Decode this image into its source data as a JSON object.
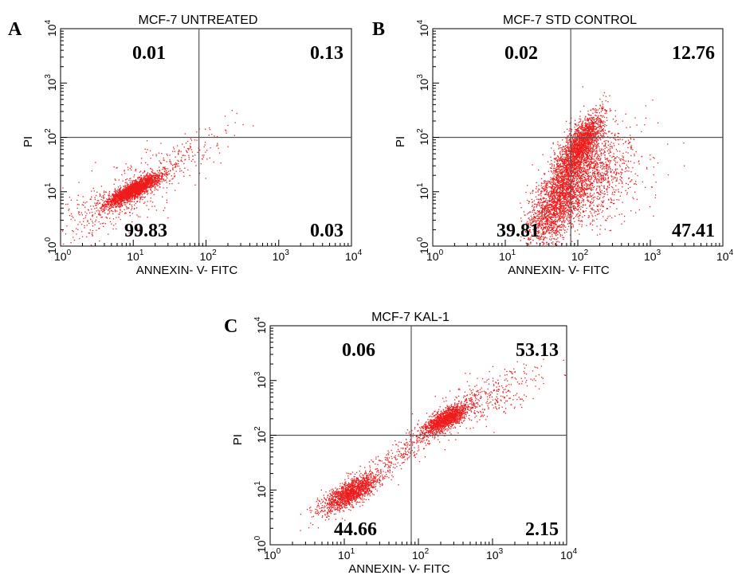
{
  "chart_data": [
    {
      "type": "scatter",
      "panel": "A",
      "title": "MCF-7 UNTREATED",
      "xlabel": "ANNEXIN- V- FITC",
      "ylabel": "PI",
      "x_scale": "log",
      "y_scale": "log",
      "xlim": [
        1,
        10000
      ],
      "ylim": [
        1,
        10000
      ],
      "x_ticks": [
        {
          "base": "10",
          "exp": "0"
        },
        {
          "base": "10",
          "exp": "1"
        },
        {
          "base": "10",
          "exp": "2"
        },
        {
          "base": "10",
          "exp": "3"
        },
        {
          "base": "10",
          "exp": "4"
        }
      ],
      "y_ticks": [
        {
          "base": "10",
          "exp": "0"
        },
        {
          "base": "10",
          "exp": "1"
        },
        {
          "base": "10",
          "exp": "2"
        },
        {
          "base": "10",
          "exp": "3"
        },
        {
          "base": "10",
          "exp": "4"
        }
      ],
      "gate": {
        "x": 80,
        "y": 100
      },
      "quadrants": {
        "upper_left": "0.01",
        "upper_right": "0.13",
        "lower_left": "99.83",
        "lower_right": "0.03"
      },
      "point_color": "#ee1c1c",
      "populations": [
        {
          "cx": 10,
          "cy": 11,
          "sdx": 0.18,
          "sdy": 0.14,
          "rho": 0.85,
          "n": 2200
        },
        {
          "cx": 6,
          "cy": 7,
          "sdx": 0.45,
          "sdy": 0.4,
          "rho": 0.7,
          "n": 500
        },
        {
          "cx": 50,
          "cy": 45,
          "sdx": 0.35,
          "sdy": 0.3,
          "rho": 0.8,
          "n": 160
        }
      ]
    },
    {
      "type": "scatter",
      "panel": "B",
      "title": "MCF-7 STD CONTROL",
      "xlabel": "ANNEXIN- V- FITC",
      "ylabel": "PI",
      "x_scale": "log",
      "y_scale": "log",
      "xlim": [
        1,
        10000
      ],
      "ylim": [
        1,
        10000
      ],
      "x_ticks": [
        {
          "base": "10",
          "exp": "0"
        },
        {
          "base": "10",
          "exp": "1"
        },
        {
          "base": "10",
          "exp": "2"
        },
        {
          "base": "10",
          "exp": "3"
        },
        {
          "base": "10",
          "exp": "4"
        }
      ],
      "y_ticks": [
        {
          "base": "10",
          "exp": "0"
        },
        {
          "base": "10",
          "exp": "1"
        },
        {
          "base": "10",
          "exp": "2"
        },
        {
          "base": "10",
          "exp": "3"
        },
        {
          "base": "10",
          "exp": "4"
        }
      ],
      "gate": {
        "x": 80,
        "y": 100
      },
      "quadrants": {
        "upper_left": "0.02",
        "upper_right": "12.76",
        "lower_left": "39.81",
        "lower_right": "47.41"
      },
      "point_color": "#ee1c1c",
      "populations": [
        {
          "cx": 110,
          "cy": 80,
          "sdx": 0.15,
          "sdy": 0.28,
          "rho": 0.75,
          "n": 1500
        },
        {
          "cx": 60,
          "cy": 10,
          "sdx": 0.22,
          "sdy": 0.5,
          "rho": 0.7,
          "n": 1800
        },
        {
          "cx": 130,
          "cy": 20,
          "sdx": 0.28,
          "sdy": 0.45,
          "rho": 0.3,
          "n": 1300
        },
        {
          "cx": 40,
          "cy": 4,
          "sdx": 0.15,
          "sdy": 0.3,
          "rho": 0.5,
          "n": 500
        },
        {
          "cx": 250,
          "cy": 20,
          "sdx": 0.4,
          "sdy": 0.45,
          "rho": 0.2,
          "n": 200
        }
      ]
    },
    {
      "type": "scatter",
      "panel": "C",
      "title": "MCF-7 KAL-1",
      "xlabel": "ANNEXIN- V- FITC",
      "ylabel": "PI",
      "x_scale": "log",
      "y_scale": "log",
      "xlim": [
        1,
        10000
      ],
      "ylim": [
        1,
        10000
      ],
      "x_ticks": [
        {
          "base": "10",
          "exp": "0"
        },
        {
          "base": "10",
          "exp": "1"
        },
        {
          "base": "10",
          "exp": "2"
        },
        {
          "base": "10",
          "exp": "3"
        },
        {
          "base": "10",
          "exp": "4"
        }
      ],
      "y_ticks": [
        {
          "base": "10",
          "exp": "0"
        },
        {
          "base": "10",
          "exp": "1"
        },
        {
          "base": "10",
          "exp": "2"
        },
        {
          "base": "10",
          "exp": "3"
        },
        {
          "base": "10",
          "exp": "4"
        }
      ],
      "gate": {
        "x": 80,
        "y": 100
      },
      "quadrants": {
        "upper_left": "0.06",
        "upper_right": "53.13",
        "lower_left": "44.66",
        "lower_right": "2.15"
      },
      "point_color": "#ee1c1c",
      "populations": [
        {
          "cx": 12,
          "cy": 9,
          "sdx": 0.2,
          "sdy": 0.18,
          "rho": 0.75,
          "n": 1500
        },
        {
          "cx": 230,
          "cy": 200,
          "sdx": 0.16,
          "sdy": 0.14,
          "rho": 0.75,
          "n": 1400
        },
        {
          "cx": 60,
          "cy": 50,
          "sdx": 0.3,
          "sdy": 0.28,
          "rho": 0.85,
          "n": 250
        },
        {
          "cx": 800,
          "cy": 500,
          "sdx": 0.35,
          "sdy": 0.3,
          "rho": 0.7,
          "n": 350
        }
      ]
    }
  ]
}
